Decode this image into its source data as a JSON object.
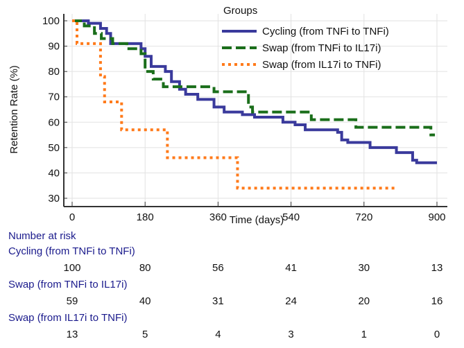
{
  "chart_data": {
    "type": "line",
    "step": true,
    "xlabel": "Time (days)",
    "ylabel": "Retention Rate (%)",
    "xlim": [
      0,
      900
    ],
    "ylim": [
      30,
      100
    ],
    "xticks": [
      0,
      180,
      360,
      540,
      720,
      900
    ],
    "yticks": [
      30,
      40,
      50,
      60,
      70,
      80,
      90,
      100
    ],
    "grid": true,
    "legend": {
      "title": "Groups",
      "placement": "top-right"
    },
    "series": [
      {
        "name": "Cycling (from TNFi to TNFi)",
        "color": "#3a3a9c",
        "style": "solid",
        "x": [
          0,
          40,
          70,
          85,
          95,
          170,
          180,
          195,
          230,
          245,
          265,
          280,
          310,
          350,
          375,
          420,
          450,
          520,
          550,
          575,
          655,
          665,
          680,
          735,
          800,
          840,
          850,
          900
        ],
        "y": [
          100,
          99,
          97,
          95,
          91,
          89,
          86,
          82,
          80,
          76,
          73,
          71,
          69,
          66,
          64,
          63,
          62,
          60,
          59,
          57,
          56,
          53,
          52,
          50,
          48,
          45,
          44,
          44
        ]
      },
      {
        "name": "Swap (from TNFi to IL17i)",
        "color": "#1a6e1a",
        "style": "dashed",
        "x": [
          0,
          30,
          55,
          72,
          100,
          135,
          170,
          180,
          200,
          225,
          350,
          435,
          445,
          590,
          700,
          885,
          895
        ],
        "y": [
          100,
          98,
          95,
          93,
          91,
          89,
          87,
          80,
          77,
          74,
          72,
          66,
          64,
          61,
          58,
          55,
          55
        ]
      },
      {
        "name": "Swap (from  IL17i to TNFi)",
        "color": "#ff7a1a",
        "style": "dotted",
        "x": [
          0,
          12,
          70,
          80,
          122,
          235,
          408,
          800
        ],
        "y": [
          100,
          91,
          78,
          68,
          57,
          46,
          34,
          34
        ]
      }
    ]
  },
  "risk_table": {
    "title": "Number at risk",
    "rows": [
      {
        "label": "Cycling (from TNFi to TNFi)",
        "values": [
          "100",
          "80",
          "56",
          "41",
          "30",
          "13"
        ]
      },
      {
        "label": "Swap (from TNFi to IL17i)",
        "values": [
          "59",
          "40",
          "31",
          "24",
          "20",
          "16"
        ]
      },
      {
        "label": "Swap (from  IL17i to TNFi)",
        "values": [
          "13",
          "5",
          "4",
          "3",
          "1",
          "0"
        ]
      }
    ]
  }
}
